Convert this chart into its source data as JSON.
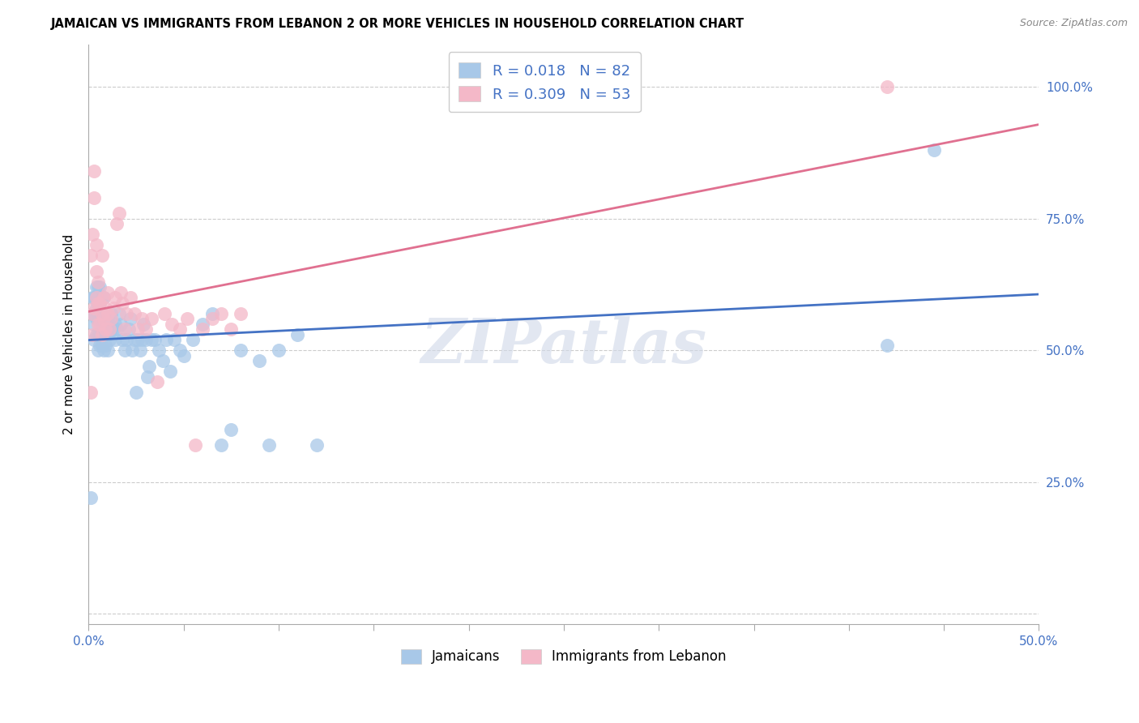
{
  "title": "JAMAICAN VS IMMIGRANTS FROM LEBANON 2 OR MORE VEHICLES IN HOUSEHOLD CORRELATION CHART",
  "source": "Source: ZipAtlas.com",
  "ylabel": "2 or more Vehicles in Household",
  "ytick_vals": [
    0.0,
    0.25,
    0.5,
    0.75,
    1.0
  ],
  "ytick_labels": [
    "",
    "25.0%",
    "50.0%",
    "75.0%",
    "100.0%"
  ],
  "xtick_vals": [
    0.0,
    0.05,
    0.1,
    0.15,
    0.2,
    0.25,
    0.3,
    0.35,
    0.4,
    0.45,
    0.5
  ],
  "blue_R": 0.018,
  "blue_N": 82,
  "pink_R": 0.309,
  "pink_N": 53,
  "blue_color": "#a8c8e8",
  "pink_color": "#f4b8c8",
  "blue_line_color": "#4472c4",
  "pink_line_color": "#e07090",
  "legend_label_blue": "Jamaicans",
  "legend_label_pink": "Immigrants from Lebanon",
  "watermark": "ZIPatlas",
  "blue_scatter_x": [
    0.001,
    0.002,
    0.002,
    0.003,
    0.003,
    0.003,
    0.003,
    0.004,
    0.004,
    0.004,
    0.004,
    0.005,
    0.005,
    0.005,
    0.005,
    0.005,
    0.006,
    0.006,
    0.006,
    0.006,
    0.006,
    0.007,
    0.007,
    0.007,
    0.007,
    0.008,
    0.008,
    0.008,
    0.008,
    0.009,
    0.009,
    0.009,
    0.01,
    0.01,
    0.01,
    0.011,
    0.011,
    0.012,
    0.012,
    0.013,
    0.014,
    0.014,
    0.015,
    0.016,
    0.017,
    0.018,
    0.019,
    0.02,
    0.021,
    0.022,
    0.023,
    0.024,
    0.025,
    0.026,
    0.027,
    0.028,
    0.029,
    0.03,
    0.031,
    0.032,
    0.033,
    0.035,
    0.037,
    0.039,
    0.041,
    0.043,
    0.045,
    0.048,
    0.05,
    0.055,
    0.06,
    0.065,
    0.07,
    0.075,
    0.08,
    0.09,
    0.095,
    0.1,
    0.11,
    0.12,
    0.42,
    0.445
  ],
  "blue_scatter_y": [
    0.22,
    0.57,
    0.6,
    0.52,
    0.55,
    0.57,
    0.6,
    0.53,
    0.56,
    0.58,
    0.62,
    0.5,
    0.53,
    0.56,
    0.59,
    0.62,
    0.51,
    0.53,
    0.56,
    0.59,
    0.62,
    0.51,
    0.54,
    0.57,
    0.6,
    0.5,
    0.53,
    0.57,
    0.6,
    0.51,
    0.54,
    0.57,
    0.5,
    0.53,
    0.56,
    0.52,
    0.55,
    0.54,
    0.57,
    0.54,
    0.52,
    0.55,
    0.54,
    0.57,
    0.55,
    0.52,
    0.5,
    0.52,
    0.54,
    0.56,
    0.5,
    0.52,
    0.42,
    0.52,
    0.5,
    0.52,
    0.55,
    0.52,
    0.45,
    0.47,
    0.52,
    0.52,
    0.5,
    0.48,
    0.52,
    0.46,
    0.52,
    0.5,
    0.49,
    0.52,
    0.55,
    0.57,
    0.32,
    0.35,
    0.5,
    0.48,
    0.32,
    0.5,
    0.53,
    0.32,
    0.51,
    0.88
  ],
  "pink_scatter_x": [
    0.001,
    0.001,
    0.002,
    0.002,
    0.002,
    0.003,
    0.003,
    0.003,
    0.004,
    0.004,
    0.004,
    0.005,
    0.005,
    0.005,
    0.006,
    0.006,
    0.007,
    0.007,
    0.007,
    0.008,
    0.008,
    0.009,
    0.009,
    0.01,
    0.01,
    0.011,
    0.012,
    0.013,
    0.014,
    0.015,
    0.016,
    0.017,
    0.018,
    0.019,
    0.02,
    0.022,
    0.024,
    0.026,
    0.028,
    0.03,
    0.033,
    0.036,
    0.04,
    0.044,
    0.048,
    0.052,
    0.056,
    0.06,
    0.065,
    0.07,
    0.075,
    0.08,
    0.42
  ],
  "pink_scatter_y": [
    0.42,
    0.68,
    0.53,
    0.57,
    0.72,
    0.58,
    0.79,
    0.84,
    0.6,
    0.65,
    0.7,
    0.55,
    0.59,
    0.63,
    0.55,
    0.59,
    0.53,
    0.57,
    0.68,
    0.56,
    0.6,
    0.54,
    0.58,
    0.57,
    0.61,
    0.54,
    0.56,
    0.58,
    0.6,
    0.74,
    0.76,
    0.61,
    0.59,
    0.54,
    0.57,
    0.6,
    0.57,
    0.54,
    0.56,
    0.54,
    0.56,
    0.44,
    0.57,
    0.55,
    0.54,
    0.56,
    0.32,
    0.54,
    0.56,
    0.57,
    0.54,
    0.57,
    1.0
  ],
  "xlim": [
    0.0,
    0.5
  ],
  "ylim": [
    -0.02,
    1.08
  ]
}
